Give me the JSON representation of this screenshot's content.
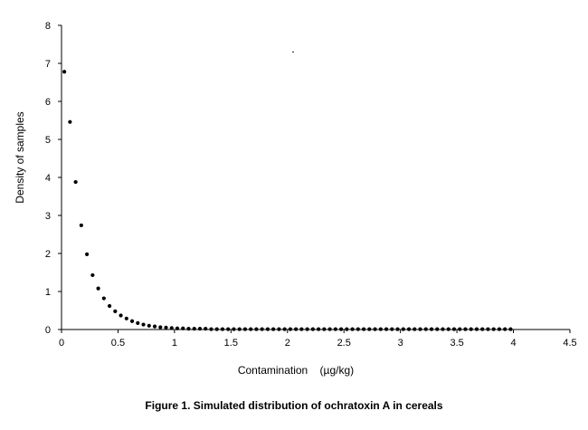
{
  "caption": "Figure 1.  Simulated distribution of ochratoxin A in cereals",
  "chart_data": {
    "type": "scatter",
    "title": "",
    "xlabel": "Contamination    (µg/kg)",
    "ylabel": "Density of samples",
    "xlim": [
      0,
      4.5
    ],
    "ylim": [
      0,
      8
    ],
    "xticks": [
      "0",
      "0.5",
      "1",
      "1.5",
      "2",
      "2.5",
      "3",
      "3.5",
      "4",
      "4.5"
    ],
    "yticks": [
      "0",
      "1",
      "2",
      "3",
      "4",
      "5",
      "6",
      "7",
      "8"
    ],
    "grid": false,
    "legend": "none",
    "marker_color": "#000000",
    "series": [
      {
        "x": [
          0.025,
          0.075,
          0.125,
          0.175,
          0.225,
          0.275,
          0.325,
          0.375,
          0.425,
          0.475,
          0.525,
          0.575,
          0.625,
          0.675,
          0.725,
          0.775,
          0.825,
          0.875,
          0.925,
          0.975,
          1.025,
          1.075,
          1.125,
          1.175,
          1.225,
          1.275,
          1.325,
          1.375,
          1.425,
          1.475,
          1.525,
          1.575,
          1.625,
          1.675,
          1.725,
          1.775,
          1.825,
          1.875,
          1.925,
          1.975,
          2.025,
          2.075,
          2.125,
          2.175,
          2.225,
          2.275,
          2.325,
          2.375,
          2.425,
          2.475,
          2.525,
          2.575,
          2.625,
          2.675,
          2.725,
          2.775,
          2.825,
          2.875,
          2.925,
          2.975,
          3.025,
          3.075,
          3.125,
          3.175,
          3.225,
          3.275,
          3.325,
          3.375,
          3.425,
          3.475,
          3.525,
          3.575,
          3.625,
          3.675,
          3.725,
          3.775,
          3.825,
          3.875,
          3.925,
          3.975
        ],
        "y": [
          6.78,
          5.46,
          3.88,
          2.74,
          1.98,
          1.43,
          1.08,
          0.82,
          0.62,
          0.48,
          0.37,
          0.29,
          0.22,
          0.17,
          0.13,
          0.1,
          0.08,
          0.06,
          0.05,
          0.04,
          0.03,
          0.03,
          0.02,
          0.02,
          0.02,
          0.02,
          0.01,
          0.01,
          0.01,
          0.01,
          0.01,
          0.01,
          0.01,
          0.01,
          0.01,
          0.01,
          0.01,
          0.01,
          0.01,
          0.01,
          0.01,
          0.01,
          0.01,
          0.01,
          0.01,
          0.01,
          0.01,
          0.01,
          0.01,
          0.01,
          0.01,
          0.01,
          0.01,
          0.01,
          0.01,
          0.01,
          0.01,
          0.01,
          0.01,
          0.01,
          0.01,
          0.01,
          0.01,
          0.01,
          0.01,
          0.01,
          0.01,
          0.01,
          0.01,
          0.01,
          0.01,
          0.01,
          0.01,
          0.01,
          0.01,
          0.01,
          0.01,
          0.01,
          0.01,
          0.01
        ]
      },
      {
        "x": [
          2.05
        ],
        "y": [
          7.3
        ]
      }
    ]
  }
}
